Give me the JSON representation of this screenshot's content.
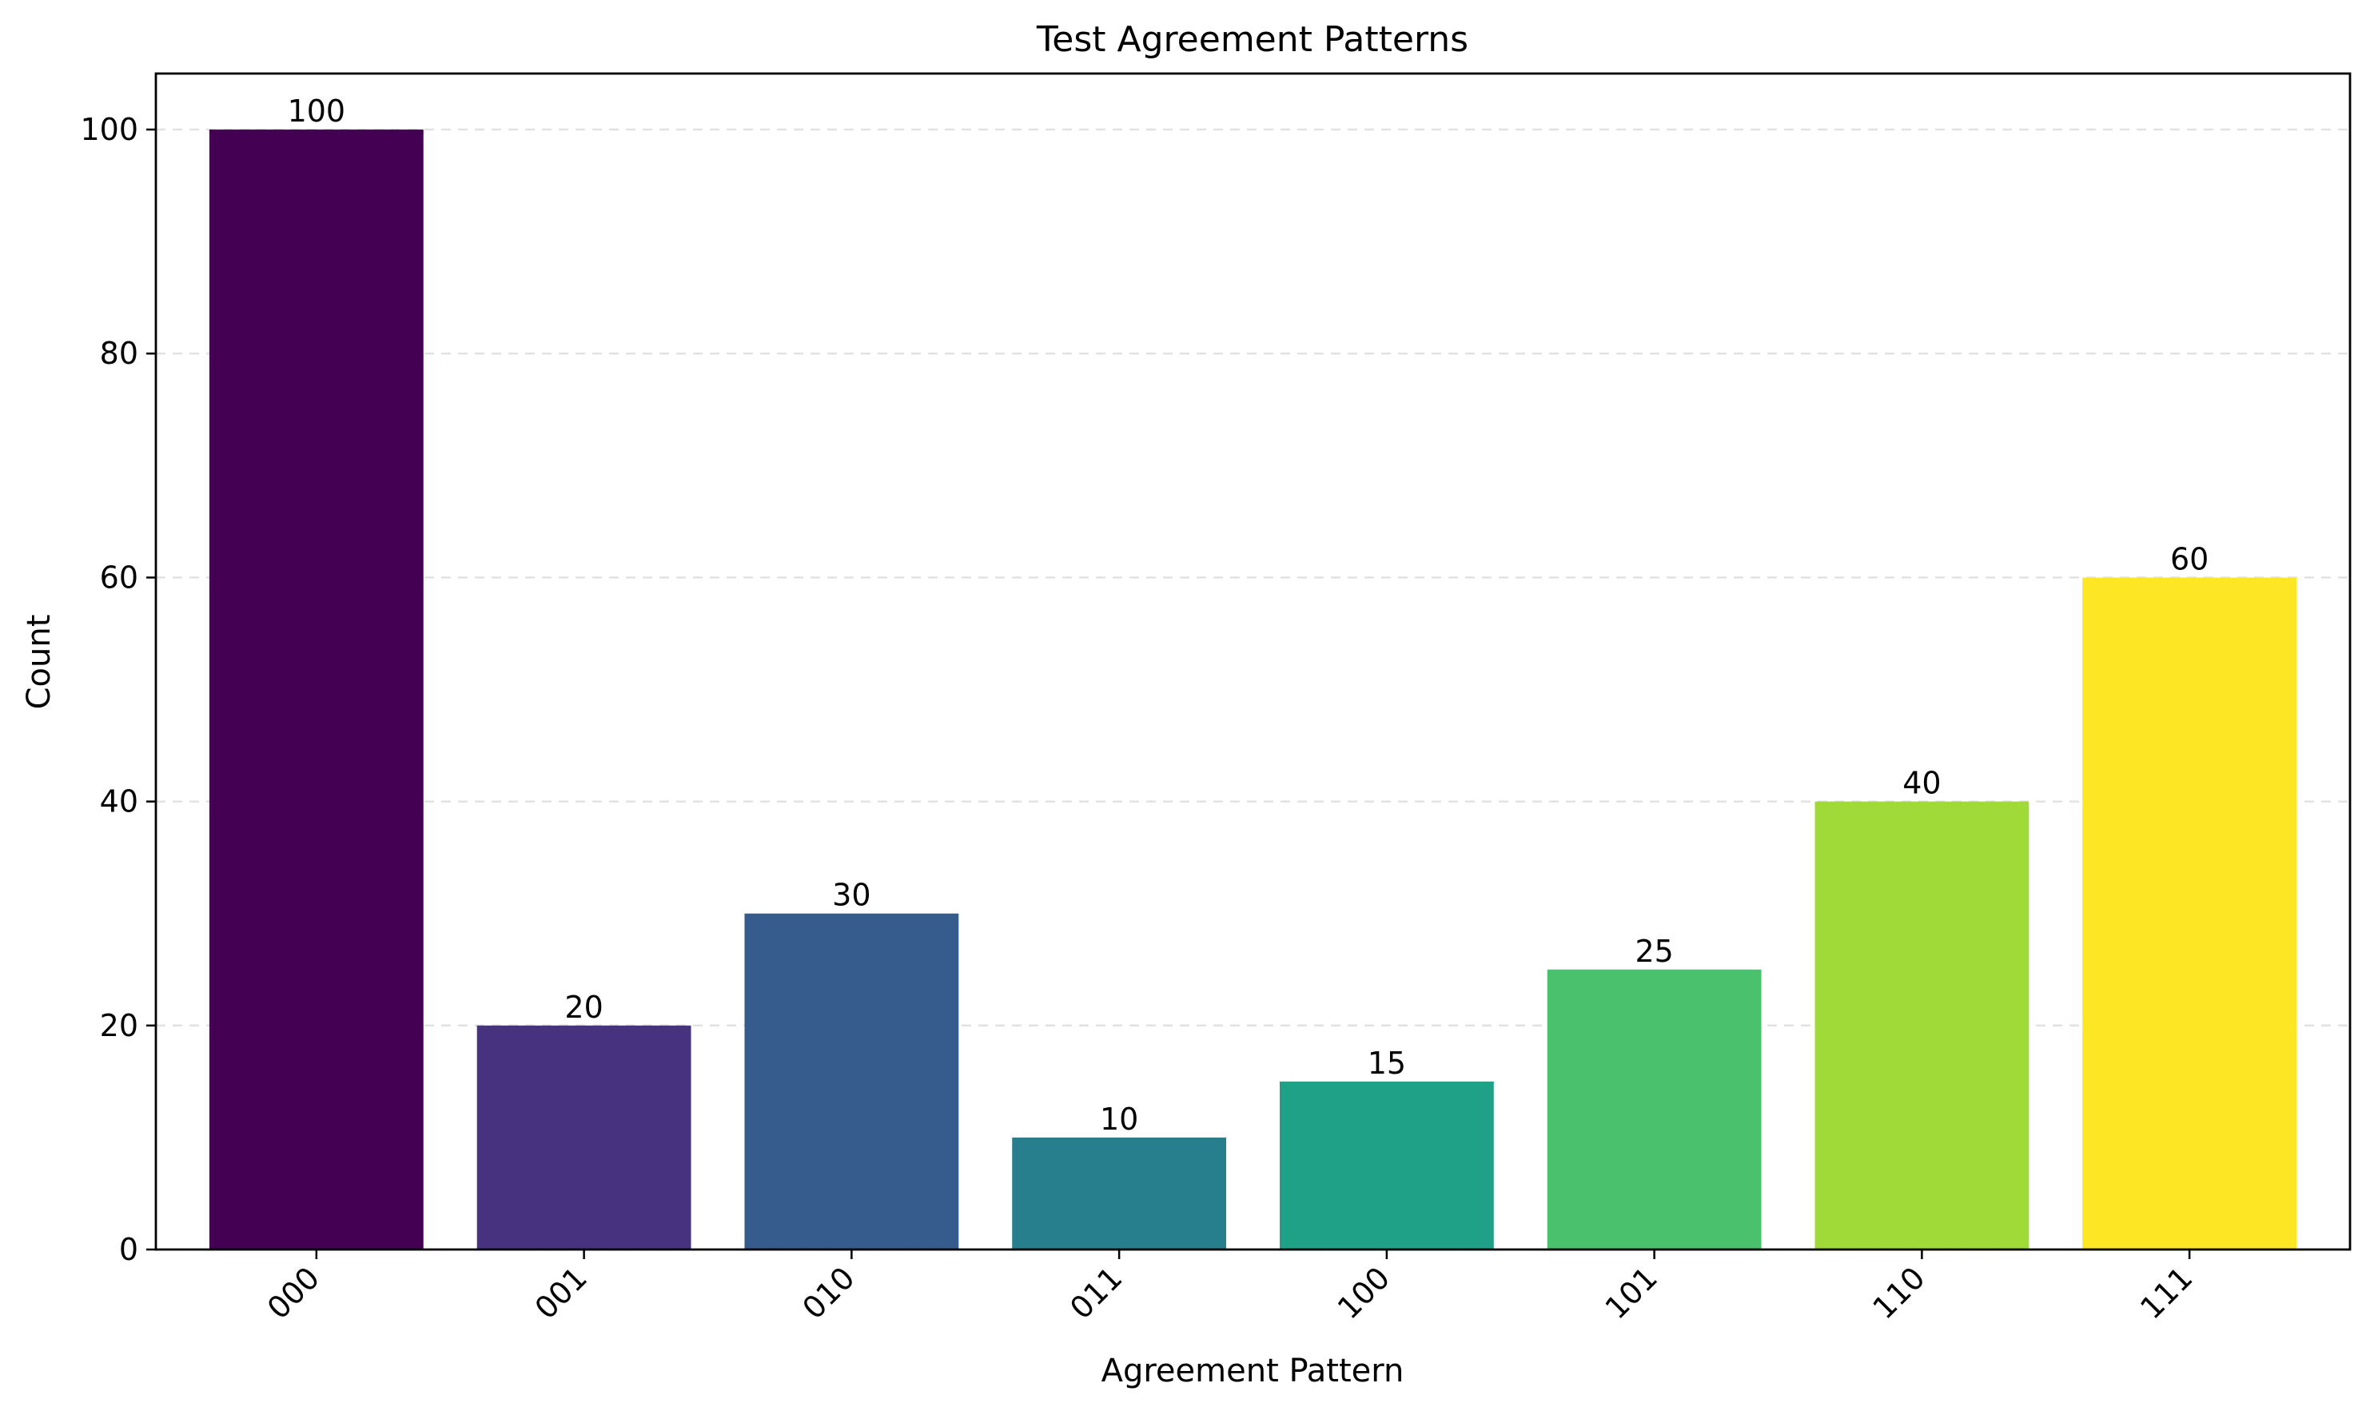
{
  "chart_data": {
    "type": "bar",
    "title": "Test Agreement Patterns",
    "xlabel": "Agreement Pattern",
    "ylabel": "Count",
    "categories": [
      "000",
      "001",
      "010",
      "011",
      "100",
      "101",
      "110",
      "111"
    ],
    "values": [
      100,
      20,
      30,
      10,
      15,
      25,
      40,
      60
    ],
    "data_labels": [
      "100",
      "20",
      "30",
      "10",
      "15",
      "25",
      "40",
      "60"
    ],
    "colors": [
      "#440154",
      "#46327e",
      "#365c8d",
      "#277f8e",
      "#1fa187",
      "#4ac16d",
      "#a0da39",
      "#fde725"
    ],
    "ylim": [
      0,
      105
    ],
    "yticks": [
      0,
      20,
      40,
      60,
      80,
      100
    ],
    "ytick_labels": [
      "0",
      "20",
      "40",
      "60",
      "80",
      "100"
    ],
    "grid": "y-dashed",
    "legend": "none"
  }
}
